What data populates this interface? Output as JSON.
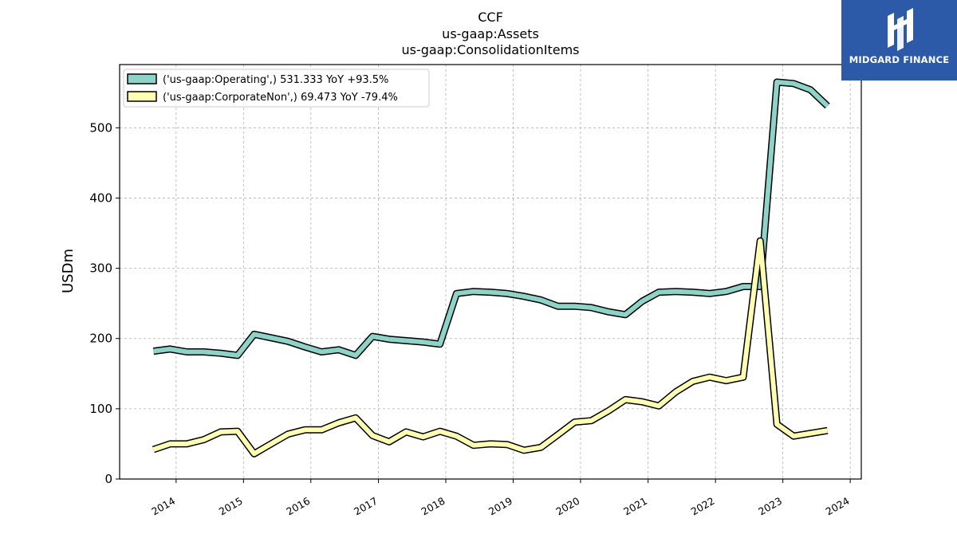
{
  "chart_data": {
    "type": "line",
    "title_lines": [
      "CCF",
      "us-gaap:Assets",
      "us-gaap:ConsolidationItems"
    ],
    "ylabel": "USDm",
    "xlabel": "",
    "ylim": [
      0,
      590
    ],
    "yticks": [
      0,
      100,
      200,
      300,
      400,
      500
    ],
    "xlim": [
      "2013-03-01",
      "2024-03-01"
    ],
    "xticks": [
      "2014",
      "2015",
      "2016",
      "2017",
      "2018",
      "2019",
      "2020",
      "2021",
      "2022",
      "2023",
      "2024"
    ],
    "grid": true,
    "legend_position": "top-left",
    "series": [
      {
        "name": "('us-gaap:Operating',) 531.333 YoY +93.5%",
        "color": "#8dd3c7",
        "points": [
          [
            "2013-08-31",
            182
          ],
          [
            "2013-11-30",
            185
          ],
          [
            "2014-02-28",
            181
          ],
          [
            "2014-05-31",
            181
          ],
          [
            "2014-08-31",
            179
          ],
          [
            "2014-11-30",
            176
          ],
          [
            "2015-02-28",
            206
          ],
          [
            "2015-05-31",
            201
          ],
          [
            "2015-08-31",
            196
          ],
          [
            "2015-11-30",
            188
          ],
          [
            "2016-02-28",
            181
          ],
          [
            "2016-05-31",
            184
          ],
          [
            "2016-08-31",
            176
          ],
          [
            "2016-11-30",
            203
          ],
          [
            "2017-02-28",
            199
          ],
          [
            "2017-05-31",
            197
          ],
          [
            "2017-08-31",
            195
          ],
          [
            "2017-11-30",
            192
          ],
          [
            "2018-02-28",
            264
          ],
          [
            "2018-05-31",
            267
          ],
          [
            "2018-08-31",
            266
          ],
          [
            "2018-11-30",
            264
          ],
          [
            "2019-02-28",
            260
          ],
          [
            "2019-05-31",
            255
          ],
          [
            "2019-08-31",
            246
          ],
          [
            "2019-11-30",
            246
          ],
          [
            "2020-02-28",
            244
          ],
          [
            "2020-05-31",
            238
          ],
          [
            "2020-08-31",
            234
          ],
          [
            "2020-11-30",
            253
          ],
          [
            "2021-02-28",
            266
          ],
          [
            "2021-05-31",
            267
          ],
          [
            "2021-08-31",
            266
          ],
          [
            "2021-11-30",
            264
          ],
          [
            "2022-02-28",
            267
          ],
          [
            "2022-05-31",
            274
          ],
          [
            "2022-08-31",
            274
          ],
          [
            "2022-11-30",
            565
          ],
          [
            "2023-02-28",
            563
          ],
          [
            "2023-05-31",
            554
          ],
          [
            "2023-08-31",
            531
          ]
        ]
      },
      {
        "name": "('us-gaap:CorporateNon',) 69.473 YoY -79.4%",
        "color": "#ffffb3",
        "points": [
          [
            "2013-08-31",
            42
          ],
          [
            "2013-11-30",
            50
          ],
          [
            "2014-02-28",
            50
          ],
          [
            "2014-05-31",
            56
          ],
          [
            "2014-08-31",
            67
          ],
          [
            "2014-11-30",
            68
          ],
          [
            "2015-02-28",
            36
          ],
          [
            "2015-05-31",
            50
          ],
          [
            "2015-08-31",
            64
          ],
          [
            "2015-11-30",
            70
          ],
          [
            "2016-02-28",
            70
          ],
          [
            "2016-05-31",
            80
          ],
          [
            "2016-08-31",
            87
          ],
          [
            "2016-11-30",
            62
          ],
          [
            "2017-02-28",
            53
          ],
          [
            "2017-05-31",
            67
          ],
          [
            "2017-08-31",
            60
          ],
          [
            "2017-11-30",
            68
          ],
          [
            "2018-02-28",
            61
          ],
          [
            "2018-05-31",
            48
          ],
          [
            "2018-08-31",
            50
          ],
          [
            "2018-11-30",
            49
          ],
          [
            "2019-02-28",
            41
          ],
          [
            "2019-05-31",
            45
          ],
          [
            "2019-08-31",
            63
          ],
          [
            "2019-11-30",
            81
          ],
          [
            "2020-02-28",
            83
          ],
          [
            "2020-05-31",
            97
          ],
          [
            "2020-08-31",
            113
          ],
          [
            "2020-11-30",
            110
          ],
          [
            "2021-02-28",
            104
          ],
          [
            "2021-05-31",
            124
          ],
          [
            "2021-08-31",
            139
          ],
          [
            "2021-11-30",
            145
          ],
          [
            "2022-02-28",
            140
          ],
          [
            "2022-05-31",
            145
          ],
          [
            "2022-08-31",
            339
          ],
          [
            "2022-11-30",
            78
          ],
          [
            "2023-02-28",
            61
          ],
          [
            "2023-05-31",
            65
          ],
          [
            "2023-08-31",
            69
          ]
        ]
      }
    ]
  },
  "logo": {
    "text": "MIDGARD FINANCE",
    "background": "#2c5aa8",
    "icon": "midgard-logo-mark"
  }
}
